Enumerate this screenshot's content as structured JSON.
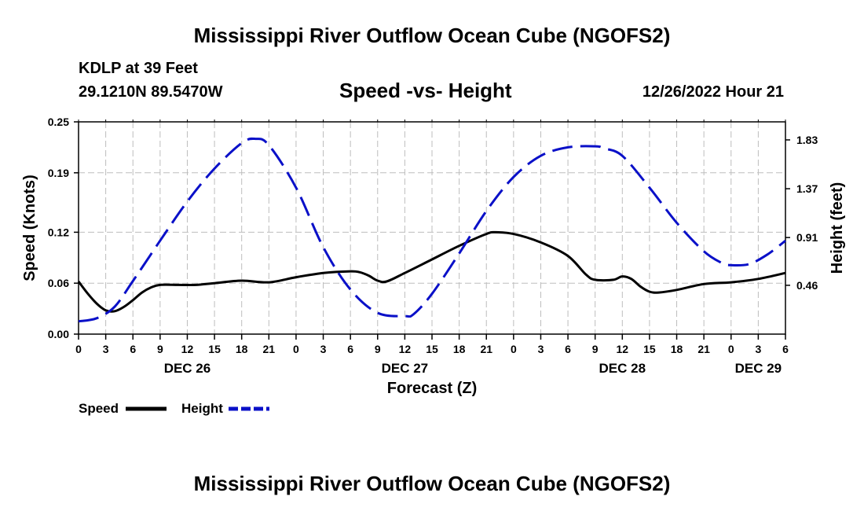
{
  "header": {
    "title": "Mississippi River Outflow Ocean Cube (NGOFS2)",
    "station": "KDLP at 39 Feet",
    "coords": "29.1210N  89.5470W",
    "subtitle": "Speed -vs- Height",
    "runtime": "12/26/2022 Hour 21"
  },
  "footer": {
    "title": "Mississippi River Outflow Ocean Cube (NGOFS2)"
  },
  "colors": {
    "speed": "#000000",
    "height": "#0a10c8",
    "grid": "#bdbdbd"
  },
  "chart_data": {
    "type": "line",
    "title": "Speed -vs- Height",
    "xlabel": "Forecast (Z)",
    "ylabel": "Speed (Knots)",
    "ylabel_right": "Height (feet)",
    "x_range_hours": [
      0,
      78
    ],
    "x_ticks": [
      {
        "h": 0,
        "label": "0"
      },
      {
        "h": 3,
        "label": "3"
      },
      {
        "h": 6,
        "label": "6"
      },
      {
        "h": 9,
        "label": "9"
      },
      {
        "h": 12,
        "label": "12"
      },
      {
        "h": 15,
        "label": "15"
      },
      {
        "h": 18,
        "label": "18"
      },
      {
        "h": 21,
        "label": "21"
      },
      {
        "h": 24,
        "label": "0"
      },
      {
        "h": 27,
        "label": "3"
      },
      {
        "h": 30,
        "label": "6"
      },
      {
        "h": 33,
        "label": "9"
      },
      {
        "h": 36,
        "label": "12"
      },
      {
        "h": 39,
        "label": "15"
      },
      {
        "h": 42,
        "label": "18"
      },
      {
        "h": 45,
        "label": "21"
      },
      {
        "h": 48,
        "label": "0"
      },
      {
        "h": 51,
        "label": "3"
      },
      {
        "h": 54,
        "label": "6"
      },
      {
        "h": 57,
        "label": "9"
      },
      {
        "h": 60,
        "label": "12"
      },
      {
        "h": 63,
        "label": "15"
      },
      {
        "h": 66,
        "label": "18"
      },
      {
        "h": 69,
        "label": "21"
      },
      {
        "h": 72,
        "label": "0"
      },
      {
        "h": 75,
        "label": "3"
      },
      {
        "h": 78,
        "label": "6"
      }
    ],
    "date_labels": [
      {
        "h": 12,
        "label": "DEC 26"
      },
      {
        "h": 36,
        "label": "DEC 27"
      },
      {
        "h": 60,
        "label": "DEC 28"
      },
      {
        "h": 75,
        "label": "DEC 29"
      }
    ],
    "y_left": {
      "range": [
        0,
        0.25
      ],
      "ticks": [
        "0.00",
        "0.06",
        "0.12",
        "0.19",
        "0.25"
      ]
    },
    "y_right": {
      "range": [
        0,
        2.0
      ],
      "ticks": [
        "0.46",
        "0.91",
        "1.37",
        "1.83"
      ]
    },
    "series": [
      {
        "name": "Speed",
        "axis": "left",
        "style": "solid",
        "x": [
          0,
          1,
          2,
          3,
          4,
          5,
          6,
          7,
          8,
          9,
          11,
          13,
          15,
          18,
          21,
          24,
          27,
          30,
          31,
          32,
          33,
          34,
          36,
          39,
          42,
          45,
          46,
          48,
          51,
          54,
          56,
          57,
          59,
          60,
          61,
          62,
          63,
          64,
          66,
          69,
          72,
          75,
          78
        ],
        "values": [
          0.062,
          0.048,
          0.036,
          0.028,
          0.027,
          0.032,
          0.04,
          0.049,
          0.055,
          0.058,
          0.058,
          0.058,
          0.06,
          0.063,
          0.061,
          0.067,
          0.072,
          0.074,
          0.073,
          0.069,
          0.063,
          0.062,
          0.072,
          0.088,
          0.104,
          0.118,
          0.12,
          0.118,
          0.108,
          0.092,
          0.07,
          0.064,
          0.064,
          0.068,
          0.065,
          0.056,
          0.05,
          0.049,
          0.052,
          0.059,
          0.061,
          0.065,
          0.072
        ]
      },
      {
        "name": "Height",
        "axis": "right",
        "style": "dashed",
        "x": [
          0,
          2,
          4,
          6,
          9,
          12,
          15,
          18,
          19.5,
          21,
          24,
          27,
          30,
          33,
          36,
          37,
          39,
          42,
          45,
          48,
          51,
          54,
          57,
          58,
          60,
          63,
          66,
          69,
          71,
          72,
          74,
          76,
          78
        ],
        "values": [
          0.12,
          0.15,
          0.26,
          0.5,
          0.88,
          1.25,
          1.56,
          1.8,
          1.84,
          1.78,
          1.38,
          0.82,
          0.42,
          0.2,
          0.17,
          0.19,
          0.38,
          0.76,
          1.16,
          1.48,
          1.68,
          1.76,
          1.77,
          1.75,
          1.68,
          1.38,
          1.05,
          0.78,
          0.67,
          0.65,
          0.66,
          0.75,
          0.88
        ]
      }
    ]
  },
  "legend": {
    "speed_label": "Speed",
    "height_label": "Height"
  }
}
